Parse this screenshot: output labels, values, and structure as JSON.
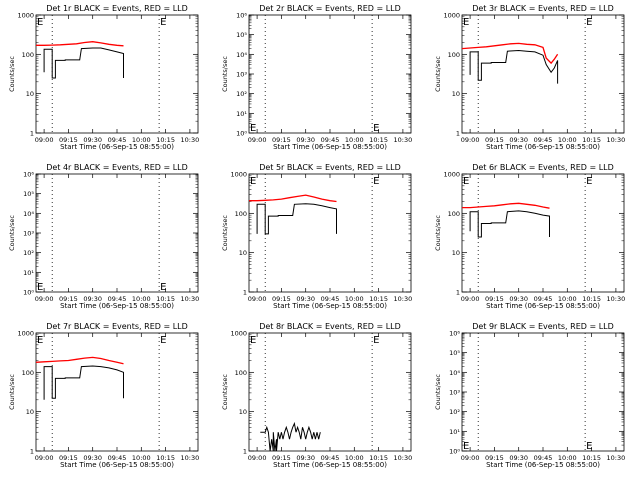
{
  "colors": {
    "events": "#000000",
    "lld": "#ff0000",
    "axis": "#000000"
  },
  "common": {
    "xlabel": "Start Time (06-Sep-15 08:55:00)",
    "ylabel": "Counts/sec",
    "xtick_labels": [
      "09:00",
      "09:15",
      "09:30",
      "09:45",
      "10:00",
      "10:15",
      "10:30"
    ],
    "xrange_minutes": [
      0,
      100
    ],
    "dotted_vlines_minutes": [
      10,
      76
    ],
    "e_marker": "E",
    "log_y": true
  },
  "chart_data": [
    {
      "type": "line",
      "title": "Det 1r BLACK = Events, RED = LLD",
      "ylim": [
        1,
        1000
      ],
      "yticks": [
        1,
        10,
        100,
        1000
      ],
      "ytick_labels": [
        "1",
        "10",
        "100",
        "1000"
      ],
      "e_markers": [
        {
          "x": 0,
          "pos": "top"
        },
        {
          "x": 76,
          "pos": "top"
        }
      ],
      "series": [
        {
          "color": "lld",
          "x": [
            0,
            5,
            10,
            15,
            20,
            25,
            30,
            35,
            40,
            45,
            50,
            54
          ],
          "y": [
            170,
            170,
            172,
            175,
            180,
            185,
            200,
            210,
            195,
            180,
            170,
            165
          ]
        },
        {
          "color": "events",
          "x": [
            5,
            5,
            10,
            10,
            12,
            12,
            18,
            18,
            27,
            28,
            35,
            40,
            45,
            50,
            54,
            54
          ],
          "y": [
            35,
            135,
            135,
            25,
            25,
            70,
            70,
            72,
            72,
            140,
            145,
            145,
            130,
            115,
            105,
            25
          ]
        }
      ]
    },
    {
      "type": "line",
      "title": "Det 2r BLACK = Events, RED = LLD",
      "ylim": [
        1,
        1000000
      ],
      "yticks": [
        1,
        10,
        100,
        1000,
        10000,
        100000,
        1000000
      ],
      "ytick_labels": [
        "10⁰",
        "10¹",
        "10²",
        "10³",
        "10⁴",
        "10⁵",
        "10⁶"
      ],
      "e_markers": [
        {
          "x": 0,
          "pos": "bottom"
        },
        {
          "x": 76,
          "pos": "bottom"
        }
      ],
      "series": []
    },
    {
      "type": "line",
      "title": "Det 3r BLACK = Events, RED = LLD",
      "ylim": [
        1,
        1000
      ],
      "yticks": [
        1,
        10,
        100,
        1000
      ],
      "ytick_labels": [
        "1",
        "10",
        "100",
        "1000"
      ],
      "e_markers": [
        {
          "x": 0,
          "pos": "top"
        },
        {
          "x": 76,
          "pos": "top"
        }
      ],
      "series": [
        {
          "color": "lld",
          "x": [
            0,
            5,
            10,
            15,
            20,
            25,
            30,
            35,
            40,
            45,
            50,
            52,
            55,
            57,
            59
          ],
          "y": [
            140,
            145,
            150,
            155,
            165,
            175,
            185,
            190,
            180,
            175,
            150,
            80,
            60,
            75,
            100
          ]
        },
        {
          "color": "events",
          "x": [
            5,
            5,
            10,
            10,
            12,
            12,
            18,
            18,
            27,
            28,
            35,
            40,
            45,
            50,
            52,
            55,
            57,
            59,
            59
          ],
          "y": [
            30,
            115,
            115,
            22,
            22,
            60,
            60,
            62,
            62,
            120,
            125,
            120,
            115,
            95,
            55,
            35,
            45,
            70,
            18
          ]
        }
      ]
    },
    {
      "type": "line",
      "title": "Det 4r BLACK = Events, RED = LLD",
      "ylim": [
        1,
        1000000
      ],
      "yticks": [
        1,
        10,
        100,
        1000,
        10000,
        100000,
        1000000
      ],
      "ytick_labels": [
        "10⁰",
        "10¹",
        "10²",
        "10³",
        "10⁴",
        "10⁵",
        "10⁶"
      ],
      "e_markers": [
        {
          "x": 0,
          "pos": "bottom"
        },
        {
          "x": 76,
          "pos": "bottom"
        }
      ],
      "series": []
    },
    {
      "type": "line",
      "title": "Det 5r BLACK = Events, RED = LLD",
      "ylim": [
        1,
        1000
      ],
      "yticks": [
        1,
        10,
        100,
        1000
      ],
      "ytick_labels": [
        "1",
        "10",
        "100",
        "1000"
      ],
      "e_markers": [
        {
          "x": 0,
          "pos": "top"
        },
        {
          "x": 76,
          "pos": "top"
        }
      ],
      "series": [
        {
          "color": "lld",
          "x": [
            0,
            5,
            10,
            15,
            20,
            25,
            30,
            35,
            40,
            45,
            50,
            54
          ],
          "y": [
            210,
            210,
            215,
            220,
            230,
            250,
            270,
            290,
            260,
            230,
            210,
            200
          ]
        },
        {
          "color": "events",
          "x": [
            5,
            5,
            10,
            10,
            12,
            12,
            18,
            18,
            27,
            28,
            35,
            40,
            45,
            50,
            54,
            54
          ],
          "y": [
            30,
            170,
            170,
            30,
            30,
            85,
            85,
            88,
            88,
            170,
            175,
            170,
            155,
            140,
            130,
            30
          ]
        }
      ]
    },
    {
      "type": "line",
      "title": "Det 6r BLACK = Events, RED = LLD",
      "ylim": [
        1,
        1000
      ],
      "yticks": [
        1,
        10,
        100,
        1000
      ],
      "ytick_labels": [
        "1",
        "10",
        "100",
        "1000"
      ],
      "e_markers": [
        {
          "x": 0,
          "pos": "top"
        },
        {
          "x": 76,
          "pos": "top"
        }
      ],
      "series": [
        {
          "color": "lld",
          "x": [
            0,
            5,
            10,
            15,
            20,
            25,
            30,
            35,
            40,
            45,
            50,
            54
          ],
          "y": [
            140,
            140,
            145,
            150,
            155,
            165,
            175,
            180,
            170,
            160,
            145,
            135
          ]
        },
        {
          "color": "events",
          "x": [
            5,
            5,
            10,
            10,
            12,
            12,
            18,
            18,
            27,
            28,
            35,
            40,
            45,
            50,
            54,
            54
          ],
          "y": [
            35,
            110,
            110,
            25,
            25,
            55,
            55,
            57,
            57,
            110,
            115,
            110,
            100,
            90,
            85,
            25
          ]
        }
      ]
    },
    {
      "type": "line",
      "title": "Det 7r BLACK = Events, RED = LLD",
      "ylim": [
        1,
        1000
      ],
      "yticks": [
        1,
        10,
        100,
        1000
      ],
      "ytick_labels": [
        "1",
        "10",
        "100",
        "1000"
      ],
      "e_markers": [
        {
          "x": 0,
          "pos": "top"
        },
        {
          "x": 76,
          "pos": "top"
        }
      ],
      "series": [
        {
          "color": "lld",
          "x": [
            0,
            5,
            10,
            15,
            20,
            25,
            30,
            35,
            40,
            45,
            50,
            54
          ],
          "y": [
            180,
            185,
            190,
            195,
            200,
            215,
            230,
            240,
            225,
            200,
            180,
            165
          ]
        },
        {
          "color": "events",
          "x": [
            5,
            5,
            10,
            10,
            12,
            12,
            18,
            18,
            27,
            28,
            35,
            40,
            45,
            50,
            54,
            54
          ],
          "y": [
            20,
            140,
            140,
            22,
            22,
            70,
            70,
            72,
            72,
            140,
            145,
            140,
            130,
            115,
            100,
            22
          ]
        }
      ]
    },
    {
      "type": "line",
      "title": "Det 8r BLACK = Events, RED = LLD",
      "ylim": [
        1,
        1000
      ],
      "yticks": [
        1,
        10,
        100,
        1000
      ],
      "ytick_labels": [
        "1",
        "10",
        "100",
        "1000"
      ],
      "e_markers": [
        {
          "x": 0,
          "pos": "top"
        },
        {
          "x": 76,
          "pos": "top"
        }
      ],
      "series": [
        {
          "color": "events",
          "x": [
            7,
            10,
            11,
            12,
            13,
            14,
            15,
            15,
            16,
            17,
            17,
            18,
            19,
            20,
            21,
            22,
            23,
            24,
            25,
            26,
            27,
            28,
            29,
            30,
            31,
            32,
            33,
            34,
            35,
            36,
            37,
            38,
            39,
            40,
            41,
            42,
            43,
            44
          ],
          "y": [
            3,
            3,
            4,
            3,
            1,
            2,
            1,
            3,
            1,
            2,
            1,
            3,
            2,
            3,
            2,
            3,
            4,
            3,
            2,
            3,
            4,
            5,
            3,
            4,
            3,
            2,
            4,
            3,
            2,
            3,
            4,
            3,
            2,
            3,
            2,
            3,
            2,
            3
          ]
        }
      ]
    },
    {
      "type": "line",
      "title": "Det 9r BLACK = Events, RED = LLD",
      "ylim": [
        1,
        1000000
      ],
      "yticks": [
        1,
        10,
        100,
        1000,
        10000,
        100000,
        1000000
      ],
      "ytick_labels": [
        "10⁰",
        "10¹",
        "10²",
        "10³",
        "10⁴",
        "10⁵",
        "10⁶"
      ],
      "e_markers": [
        {
          "x": 0,
          "pos": "bottom"
        },
        {
          "x": 76,
          "pos": "bottom"
        }
      ],
      "series": []
    }
  ]
}
